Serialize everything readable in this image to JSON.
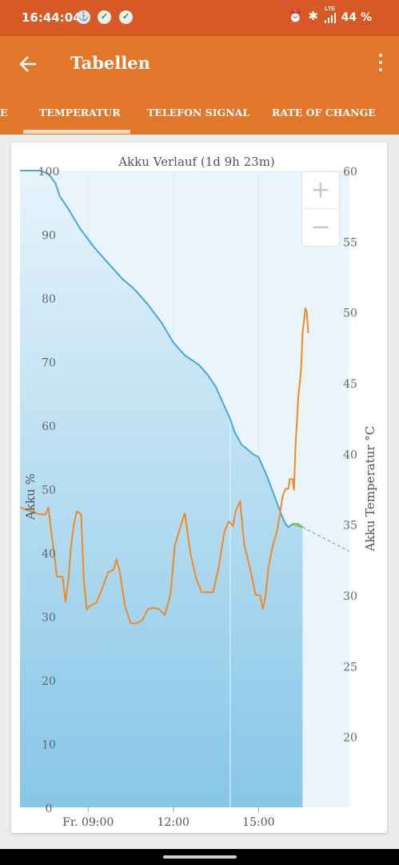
{
  "status_bar": {
    "time": "16:44:04",
    "notifications": [
      "app-notification-icon",
      "shield-check-icon",
      "shield-check-icon"
    ],
    "network": "LTE",
    "battery": "44 %"
  },
  "app_bar": {
    "title": "Tabellen"
  },
  "tabs": [
    {
      "label": "E"
    },
    {
      "label": "TEMPERATUR",
      "selected": true
    },
    {
      "label": "TELEFON SIGNAL"
    },
    {
      "label": "RATE OF CHANGE"
    }
  ],
  "colors": {
    "status_bar": "#d75a26",
    "app_bar": "#e2772b",
    "battery_line": "#4aa7dc",
    "temperature_line": "#f08a24",
    "charging_segment": "#8cc63f"
  },
  "chart_data": {
    "type": "line",
    "title": "Akku Verlauf (1d 9h 23m)",
    "ylabel": "Akku %",
    "y2label": "Akku Temperatur °C",
    "ylim": [
      0,
      100
    ],
    "y2lim": [
      15,
      60
    ],
    "yticks": [
      "0",
      "10",
      "20",
      "30",
      "40",
      "50",
      "60",
      "70",
      "80",
      "90",
      "100"
    ],
    "y2ticks": [
      "20",
      "25",
      "30",
      "35",
      "40",
      "45",
      "50",
      "55",
      "60"
    ],
    "xlim": [
      6.6,
      18.2
    ],
    "xticks": [
      {
        "value": 9,
        "label": "Fr. 09:00"
      },
      {
        "value": 12,
        "label": "12:00"
      },
      {
        "value": 15,
        "label": "15:00"
      }
    ],
    "grid": true,
    "series": [
      {
        "key": "battery",
        "axis": "left",
        "fill": true,
        "points": [
          [
            6.6,
            100
          ],
          [
            7.3,
            100
          ],
          [
            7.6,
            99.5
          ],
          [
            7.85,
            98
          ],
          [
            8.0,
            96
          ],
          [
            8.3,
            94
          ],
          [
            8.7,
            91
          ],
          [
            9.2,
            88
          ],
          [
            9.8,
            85
          ],
          [
            10.2,
            83
          ],
          [
            10.6,
            81.5
          ],
          [
            11.1,
            79
          ],
          [
            11.6,
            76
          ],
          [
            12.0,
            73
          ],
          [
            12.4,
            71
          ],
          [
            12.9,
            69.5
          ],
          [
            13.2,
            68
          ],
          [
            13.5,
            66
          ],
          [
            13.8,
            63
          ],
          [
            14.0,
            61
          ],
          [
            14.15,
            59
          ],
          [
            14.4,
            57
          ],
          [
            14.8,
            55.5
          ],
          [
            15.0,
            55
          ],
          [
            15.1,
            54
          ],
          [
            15.3,
            52
          ],
          [
            15.55,
            49
          ],
          [
            15.8,
            46
          ],
          [
            15.95,
            44.5
          ],
          [
            16.05,
            44
          ],
          [
            16.2,
            44.5
          ],
          [
            16.4,
            44.5
          ],
          [
            16.55,
            44
          ]
        ]
      },
      {
        "key": "battery_charging",
        "axis": "left",
        "points": [
          [
            16.2,
            44.5
          ],
          [
            16.4,
            44.3
          ],
          [
            16.5,
            44
          ]
        ]
      },
      {
        "key": "battery_projection",
        "axis": "left",
        "dashed": true,
        "points": [
          [
            16.55,
            44
          ],
          [
            18.2,
            40.2
          ]
        ]
      },
      {
        "key": "temperature",
        "axis": "right",
        "points": [
          [
            6.6,
            36.2
          ],
          [
            7.3,
            35.7
          ],
          [
            7.5,
            35.7
          ],
          [
            7.6,
            36.2
          ],
          [
            7.7,
            34.5
          ],
          [
            7.9,
            31.3
          ],
          [
            8.1,
            31.3
          ],
          [
            8.2,
            29.5
          ],
          [
            8.3,
            31.0
          ],
          [
            8.4,
            33.5
          ],
          [
            8.5,
            35.0
          ],
          [
            8.6,
            35.9
          ],
          [
            8.75,
            35.7
          ],
          [
            8.85,
            31.0
          ],
          [
            8.95,
            29.0
          ],
          [
            9.05,
            29.2
          ],
          [
            9.3,
            29.5
          ],
          [
            9.5,
            30.5
          ],
          [
            9.7,
            31.6
          ],
          [
            9.9,
            31.8
          ],
          [
            10.0,
            32.5
          ],
          [
            10.1,
            31.8
          ],
          [
            10.3,
            29.2
          ],
          [
            10.5,
            28.0
          ],
          [
            10.7,
            28.0
          ],
          [
            10.9,
            28.2
          ],
          [
            11.1,
            29.0
          ],
          [
            11.3,
            29.1
          ],
          [
            11.5,
            29.0
          ],
          [
            11.7,
            28.6
          ],
          [
            11.9,
            30.0
          ],
          [
            12.05,
            33.5
          ],
          [
            12.2,
            34.5
          ],
          [
            12.4,
            35.8
          ],
          [
            12.6,
            33.0
          ],
          [
            12.8,
            31.2
          ],
          [
            13.0,
            30.2
          ],
          [
            13.2,
            30.2
          ],
          [
            13.4,
            30.2
          ],
          [
            13.6,
            32.0
          ],
          [
            13.8,
            34.5
          ],
          [
            13.95,
            35.2
          ],
          [
            14.1,
            34.9
          ],
          [
            14.2,
            36.0
          ],
          [
            14.35,
            36.6
          ],
          [
            14.5,
            33.5
          ],
          [
            14.7,
            31.9
          ],
          [
            14.9,
            30.0
          ],
          [
            15.05,
            30.0
          ],
          [
            15.15,
            29.0
          ],
          [
            15.25,
            30.0
          ],
          [
            15.35,
            32.0
          ],
          [
            15.5,
            33.5
          ],
          [
            15.65,
            34.5
          ],
          [
            15.75,
            35.7
          ],
          [
            15.85,
            37.0
          ],
          [
            15.95,
            37.5
          ],
          [
            16.05,
            37.5
          ],
          [
            16.1,
            38.2
          ],
          [
            16.2,
            38.2
          ],
          [
            16.25,
            37.4
          ],
          [
            16.3,
            40.5
          ],
          [
            16.4,
            44.0
          ],
          [
            16.5,
            46.0
          ],
          [
            16.55,
            48.5
          ],
          [
            16.6,
            49.4
          ],
          [
            16.65,
            50.3
          ],
          [
            16.7,
            50.0
          ],
          [
            16.75,
            48.5
          ]
        ]
      }
    ]
  }
}
